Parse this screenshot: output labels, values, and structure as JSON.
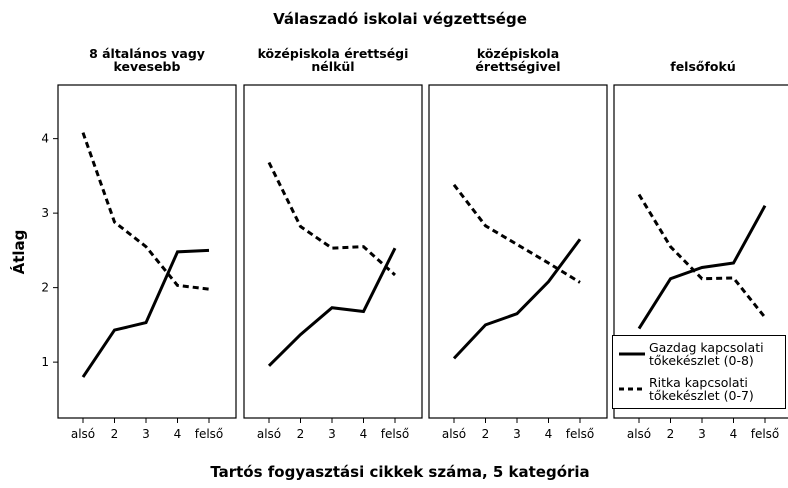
{
  "title": "Válaszadó iskolai végzettsége",
  "x_label": "Tartós fogyasztási cikkek száma, 5 kategória",
  "y_label": "Átlag",
  "chart_data": [
    {
      "type": "line",
      "title": [
        "8 általános vagy",
        "kevesebb"
      ],
      "categories": [
        "alsó",
        "2",
        "3",
        "4",
        "felső"
      ],
      "ylim": [
        0.25,
        4.72
      ],
      "yticks": [
        1,
        2,
        3,
        4
      ],
      "series": [
        {
          "name": "Gazdag kapcsolati tőkekészlet (0-8)",
          "color": "#000000",
          "dash": "solid",
          "values": [
            0.8,
            1.43,
            1.53,
            2.48,
            2.5
          ]
        },
        {
          "name": "Ritka kapcsolati tőkekészlet (0-7)",
          "color": "#000000",
          "dash": "dashed",
          "values": [
            4.08,
            2.88,
            2.55,
            2.03,
            1.98
          ]
        }
      ]
    },
    {
      "type": "line",
      "title": [
        "középiskola érettségi",
        "nélkül"
      ],
      "categories": [
        "alsó",
        "2",
        "3",
        "4",
        "felső"
      ],
      "ylim": [
        0.25,
        4.72
      ],
      "series": [
        {
          "color": "#000000",
          "dash": "solid",
          "values": [
            0.95,
            1.37,
            1.73,
            1.68,
            2.53
          ]
        },
        {
          "color": "#000000",
          "dash": "dashed",
          "values": [
            3.68,
            2.82,
            2.53,
            2.55,
            2.17
          ]
        }
      ]
    },
    {
      "type": "line",
      "title": [
        "középiskola",
        "érettségivel"
      ],
      "categories": [
        "alsó",
        "2",
        "3",
        "4",
        "felső"
      ],
      "ylim": [
        0.25,
        4.72
      ],
      "series": [
        {
          "color": "#000000",
          "dash": "solid",
          "values": [
            1.05,
            1.5,
            1.65,
            2.08,
            2.65
          ]
        },
        {
          "color": "#000000",
          "dash": "dashed",
          "values": [
            3.38,
            2.83,
            2.58,
            2.33,
            2.07
          ]
        }
      ]
    },
    {
      "type": "line",
      "title": [
        "felsőfokú"
      ],
      "categories": [
        "alsó",
        "2",
        "3",
        "4",
        "felső"
      ],
      "ylim": [
        0.25,
        4.72
      ],
      "series": [
        {
          "color": "#000000",
          "dash": "solid",
          "values": [
            1.45,
            2.12,
            2.27,
            2.33,
            3.1
          ]
        },
        {
          "color": "#000000",
          "dash": "dashed",
          "values": [
            3.25,
            2.55,
            2.12,
            2.13,
            1.6
          ]
        }
      ]
    }
  ]
}
